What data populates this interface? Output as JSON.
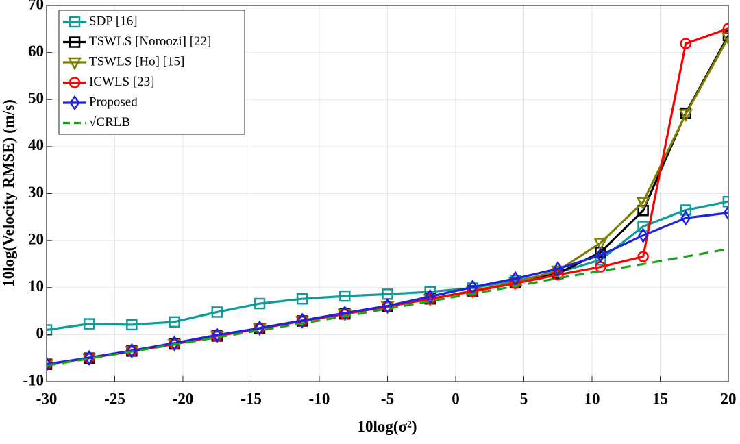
{
  "chart_data": {
    "type": "line",
    "x_label": "10log(σ²)",
    "y_label": "10log(Velocity RMSE) (m/s)",
    "x": [
      -30,
      -26.875,
      -23.75,
      -20.625,
      -17.5,
      -14.375,
      -11.25,
      -8.125,
      -5,
      -1.875,
      1.25,
      4.375,
      7.5,
      10.625,
      13.75,
      16.875,
      20
    ],
    "series": [
      {
        "name": "SDP [16]",
        "color": "#0f9b9b",
        "marker": "square",
        "line_style": "solid",
        "values": [
          1.0,
          2.3,
          2.1,
          2.7,
          4.8,
          6.6,
          7.6,
          8.2,
          8.6,
          9.1,
          9.9,
          11.5,
          13.2,
          15.9,
          23.0,
          26.5,
          28.3
        ]
      },
      {
        "name": "TSWLS [Noroozi] [22]",
        "color": "#000000",
        "marker": "square",
        "line_style": "solid",
        "values": [
          -6.3,
          -5.0,
          -3.5,
          -2.0,
          -0.3,
          1.3,
          2.9,
          4.4,
          6.0,
          7.6,
          9.3,
          11.0,
          13.0,
          17.5,
          26.4,
          47.1,
          63.6
        ]
      },
      {
        "name": "TSWLS [Ho] [15]",
        "color": "#7f7f00",
        "marker": "triangle-down",
        "line_style": "solid",
        "values": [
          -6.3,
          -5.0,
          -3.5,
          -2.0,
          -0.3,
          1.3,
          2.9,
          4.4,
          6.0,
          7.6,
          9.3,
          11.1,
          13.6,
          19.5,
          28.2,
          46.9,
          63.2
        ]
      },
      {
        "name": "ICWLS [23]",
        "color": "#ff0000",
        "marker": "circle",
        "line_style": "solid",
        "values": [
          -6.3,
          -5.0,
          -3.5,
          -2.0,
          -0.3,
          1.3,
          2.9,
          4.4,
          6.0,
          7.6,
          9.2,
          10.9,
          12.7,
          14.4,
          16.6,
          61.9,
          65.1
        ]
      },
      {
        "name": "Proposed",
        "color": "#2020e0",
        "marker": "diamond",
        "line_style": "solid",
        "values": [
          -6.3,
          -4.9,
          -3.4,
          -1.8,
          -0.1,
          1.4,
          3.0,
          4.6,
          6.1,
          8.1,
          10.1,
          11.9,
          14.0,
          16.9,
          21.1,
          24.8,
          25.9
        ]
      },
      {
        "name": "√CRLB",
        "color": "#1aa31a",
        "marker": "none",
        "line_style": "dashed",
        "values": [
          -6.6,
          -5.1,
          -3.6,
          -2.1,
          -0.6,
          0.9,
          2.4,
          3.9,
          5.5,
          7.1,
          8.7,
          10.3,
          12.0,
          13.5,
          15.0,
          16.6,
          18.2
        ]
      }
    ],
    "xlim": [
      -30,
      20
    ],
    "xticks": [
      -30,
      -25,
      -20,
      -15,
      -10,
      -5,
      0,
      5,
      10,
      15,
      20
    ],
    "ylim": [
      -10,
      70
    ],
    "yticks": [
      -10,
      0,
      10,
      20,
      30,
      40,
      50,
      60,
      70
    ],
    "grid": true,
    "legend": "upper-left"
  }
}
